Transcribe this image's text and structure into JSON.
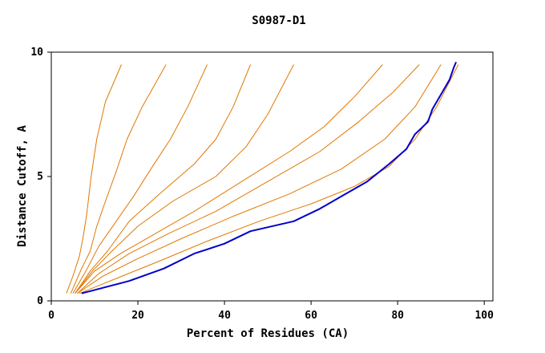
{
  "chart_data": {
    "type": "line",
    "title": "S0987-D1",
    "xlabel": "Percent of Residues (CA)",
    "ylabel": "Distance Cutoff, A",
    "xlim": [
      0,
      102
    ],
    "ylim": [
      0,
      10
    ],
    "x_ticks": [
      "0",
      "20",
      "40",
      "60",
      "80",
      "100"
    ],
    "y_ticks": [
      "0",
      "5",
      "10"
    ],
    "x_tick_values": [
      0,
      20,
      40,
      60,
      80,
      100
    ],
    "y_tick_values": [
      0,
      5,
      10
    ],
    "grid": false,
    "colors": {
      "reference": "#0000cc",
      "models": "#e07800"
    },
    "series": [
      {
        "role": "model",
        "points": [
          [
            3.5,
            0.3
          ],
          [
            5,
            1.0
          ],
          [
            6.5,
            1.8
          ],
          [
            7.3,
            2.5
          ],
          [
            8.2,
            3.5
          ],
          [
            9.2,
            5.0
          ],
          [
            10.5,
            6.5
          ],
          [
            12.5,
            8.0
          ],
          [
            16.2,
            9.5
          ]
        ]
      },
      {
        "role": "model",
        "points": [
          [
            4.5,
            0.3
          ],
          [
            7,
            1.3
          ],
          [
            9,
            2.0
          ],
          [
            10.5,
            3.0
          ],
          [
            12.5,
            4.0
          ],
          [
            15,
            5.2
          ],
          [
            17.5,
            6.5
          ],
          [
            21,
            7.8
          ],
          [
            26.5,
            9.5
          ]
        ]
      },
      {
        "role": "model",
        "points": [
          [
            5,
            0.3
          ],
          [
            8,
            1.2
          ],
          [
            11,
            2.2
          ],
          [
            15,
            3.2
          ],
          [
            19,
            4.2
          ],
          [
            23,
            5.3
          ],
          [
            27.5,
            6.5
          ],
          [
            31.5,
            7.8
          ],
          [
            36,
            9.5
          ]
        ]
      },
      {
        "role": "model",
        "points": [
          [
            5.5,
            0.3
          ],
          [
            9,
            1.2
          ],
          [
            13,
            2.0
          ],
          [
            18,
            3.2
          ],
          [
            25,
            4.3
          ],
          [
            33,
            5.5
          ],
          [
            38,
            6.5
          ],
          [
            42,
            7.8
          ],
          [
            46,
            9.5
          ]
        ]
      },
      {
        "role": "model",
        "points": [
          [
            5.5,
            0.3
          ],
          [
            9.5,
            1.2
          ],
          [
            14,
            2.0
          ],
          [
            20,
            3.0
          ],
          [
            28,
            4.0
          ],
          [
            38,
            5.0
          ],
          [
            45,
            6.2
          ],
          [
            50,
            7.5
          ],
          [
            56,
            9.5
          ]
        ]
      },
      {
        "role": "model",
        "points": [
          [
            5.5,
            0.3
          ],
          [
            10,
            1.2
          ],
          [
            16,
            1.9
          ],
          [
            24,
            2.7
          ],
          [
            33,
            3.6
          ],
          [
            44,
            4.8
          ],
          [
            55,
            6.0
          ],
          [
            63,
            7.0
          ],
          [
            70,
            8.2
          ],
          [
            76.5,
            9.5
          ]
        ]
      },
      {
        "role": "model",
        "points": [
          [
            6,
            0.3
          ],
          [
            11,
            1.1
          ],
          [
            18,
            1.9
          ],
          [
            27,
            2.7
          ],
          [
            38,
            3.6
          ],
          [
            50,
            4.8
          ],
          [
            62,
            6.0
          ],
          [
            71,
            7.2
          ],
          [
            79,
            8.4
          ],
          [
            85,
            9.5
          ]
        ]
      },
      {
        "role": "model",
        "points": [
          [
            6,
            0.3
          ],
          [
            12,
            1.0
          ],
          [
            20,
            1.7
          ],
          [
            30,
            2.5
          ],
          [
            42,
            3.4
          ],
          [
            55,
            4.3
          ],
          [
            67,
            5.3
          ],
          [
            77,
            6.5
          ],
          [
            84,
            7.8
          ],
          [
            90,
            9.5
          ]
        ]
      },
      {
        "role": "model",
        "points": [
          [
            6.5,
            0.3
          ],
          [
            15,
            0.9
          ],
          [
            25,
            1.6
          ],
          [
            36,
            2.4
          ],
          [
            48,
            3.2
          ],
          [
            60,
            3.9
          ],
          [
            70,
            4.6
          ],
          [
            78,
            5.4
          ],
          [
            84,
            6.5
          ],
          [
            89,
            7.8
          ],
          [
            94,
            9.5
          ]
        ]
      },
      {
        "role": "reference",
        "points": [
          [
            7,
            0.3
          ],
          [
            18,
            0.8
          ],
          [
            26,
            1.3
          ],
          [
            33,
            1.9
          ],
          [
            40,
            2.3
          ],
          [
            46,
            2.8
          ],
          [
            56,
            3.2
          ],
          [
            62,
            3.7
          ],
          [
            67,
            4.2
          ],
          [
            73,
            4.8
          ],
          [
            78,
            5.5
          ],
          [
            82,
            6.1
          ],
          [
            84,
            6.7
          ],
          [
            87,
            7.2
          ],
          [
            88,
            7.7
          ],
          [
            90,
            8.3
          ],
          [
            92,
            8.9
          ],
          [
            93,
            9.4
          ],
          [
            93.5,
            9.6
          ]
        ]
      }
    ]
  }
}
